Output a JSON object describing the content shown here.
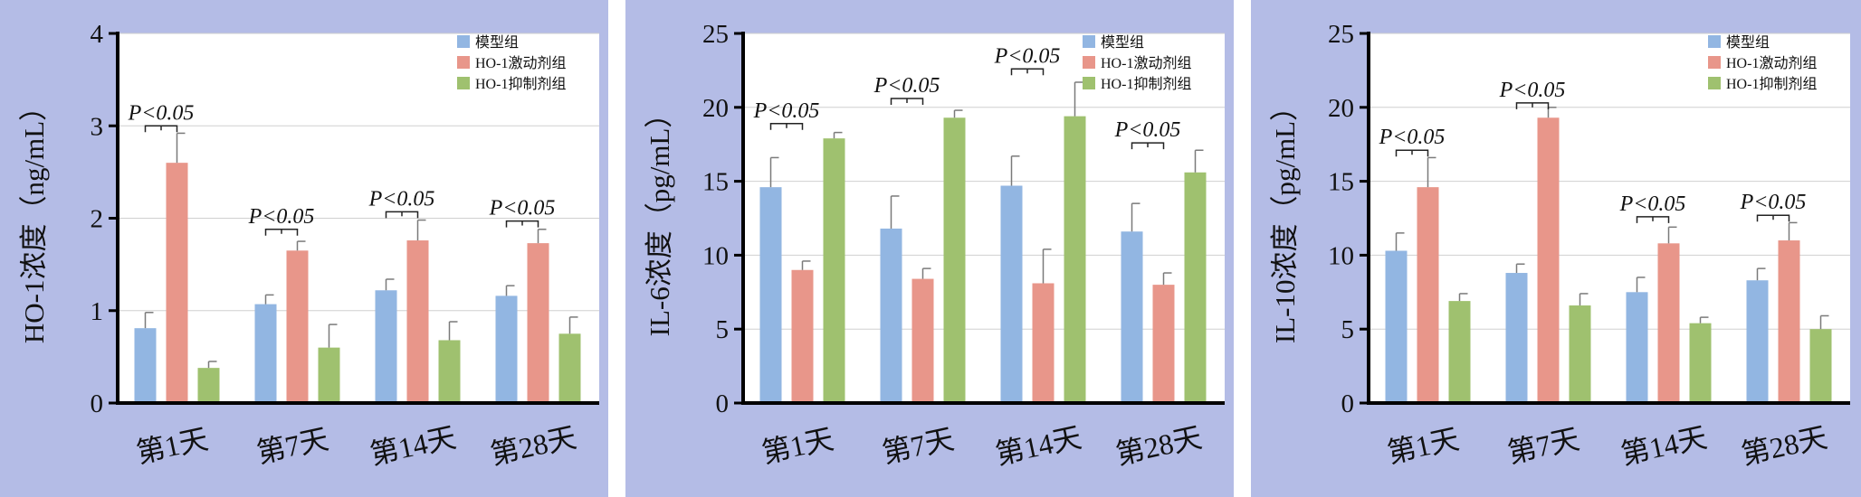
{
  "legend": [
    "模型组",
    "HO-1激动剂组",
    "HO-1抑制剂组"
  ],
  "colors": {
    "series": [
      "#92b6e2",
      "#e8968a",
      "#9fc16f"
    ],
    "panel_bg": "#b4bce6",
    "plot_bg": "#ffffff",
    "error_bar": "#7a7a7a",
    "grid": "#d0d0d0"
  },
  "chart_data": [
    {
      "type": "bar",
      "ylabel": "HO-1浓度（ng/mL）",
      "categories": [
        "第1天",
        "第7天",
        "第14天",
        "第28天"
      ],
      "ylim": [
        0,
        4
      ],
      "yticks": [
        0,
        1,
        2,
        3,
        4
      ],
      "grid": true,
      "legend_position": "top-right",
      "series": [
        {
          "name": "模型组",
          "values": [
            0.81,
            1.07,
            1.22,
            1.16
          ],
          "errors": [
            0.17,
            0.1,
            0.12,
            0.11
          ]
        },
        {
          "name": "HO-1激动剂组",
          "values": [
            2.6,
            1.65,
            1.76,
            1.73
          ],
          "errors": [
            0.32,
            0.1,
            0.22,
            0.15
          ]
        },
        {
          "name": "HO-1抑制剂组",
          "values": [
            0.38,
            0.6,
            0.68,
            0.75
          ],
          "errors": [
            0.07,
            0.25,
            0.2,
            0.18
          ]
        }
      ],
      "annotations": [
        {
          "text": "P<0.05",
          "category": 0,
          "y": 3.0
        },
        {
          "text": "P<0.05",
          "category": 1,
          "y": 1.88
        },
        {
          "text": "P<0.05",
          "category": 2,
          "y": 2.07
        },
        {
          "text": "P<0.05",
          "category": 3,
          "y": 1.97
        }
      ]
    },
    {
      "type": "bar",
      "ylabel": "IL-6浓度（pg/mL）",
      "categories": [
        "第1天",
        "第7天",
        "第14天",
        "第28天"
      ],
      "ylim": [
        0,
        25
      ],
      "yticks": [
        0,
        5,
        10,
        15,
        20,
        25
      ],
      "grid": true,
      "legend_position": "top-right",
      "series": [
        {
          "name": "模型组",
          "values": [
            14.6,
            11.8,
            14.7,
            11.6
          ],
          "errors": [
            2.0,
            2.2,
            2.0,
            1.9
          ]
        },
        {
          "name": "HO-1激动剂组",
          "values": [
            9.0,
            8.4,
            8.1,
            8.0
          ],
          "errors": [
            0.6,
            0.7,
            2.3,
            0.8
          ]
        },
        {
          "name": "HO-1抑制剂组",
          "values": [
            17.9,
            19.3,
            19.4,
            15.6
          ],
          "errors": [
            0.4,
            0.5,
            2.3,
            1.5
          ]
        }
      ],
      "annotations": [
        {
          "text": "P<0.05",
          "category": 0,
          "y": 18.9
        },
        {
          "text": "P<0.05",
          "category": 1,
          "y": 20.6
        },
        {
          "text": "P<0.05",
          "category": 2,
          "y": 22.6
        },
        {
          "text": "P<0.05",
          "category": 3,
          "y": 17.6
        }
      ]
    },
    {
      "type": "bar",
      "ylabel": "IL-10浓度（pg/mL）",
      "categories": [
        "第1天",
        "第7天",
        "第14天",
        "第28天"
      ],
      "ylim": [
        0,
        25
      ],
      "yticks": [
        0,
        5,
        10,
        15,
        20,
        25
      ],
      "grid": true,
      "legend_position": "top-right",
      "series": [
        {
          "name": "模型组",
          "values": [
            10.3,
            8.8,
            7.5,
            8.3
          ],
          "errors": [
            1.2,
            0.6,
            1.0,
            0.8
          ]
        },
        {
          "name": "HO-1激动剂组",
          "values": [
            14.6,
            19.3,
            10.8,
            11.0
          ],
          "errors": [
            2.0,
            0.7,
            1.1,
            1.2
          ]
        },
        {
          "name": "HO-1抑制剂组",
          "values": [
            6.9,
            6.6,
            5.4,
            5.0
          ],
          "errors": [
            0.5,
            0.8,
            0.4,
            0.9
          ]
        }
      ],
      "annotations": [
        {
          "text": "P<0.05",
          "category": 0,
          "y": 17.1
        },
        {
          "text": "P<0.05",
          "category": 1,
          "y": 20.3
        },
        {
          "text": "P<0.05",
          "category": 2,
          "y": 12.6
        },
        {
          "text": "P<0.05",
          "category": 3,
          "y": 12.7
        }
      ]
    }
  ]
}
